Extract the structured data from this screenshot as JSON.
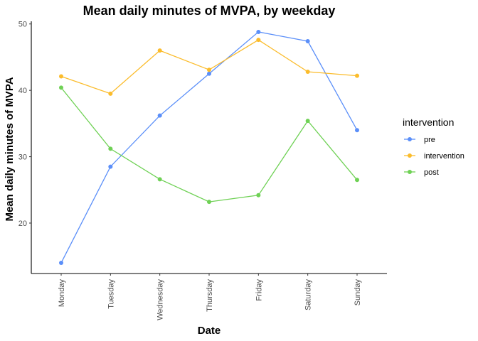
{
  "chart_data": {
    "type": "line",
    "title": "Mean daily minutes of MVPA, by weekday",
    "xlabel": "Date",
    "ylabel": "Mean daily minutes of MVPA",
    "categories": [
      "Monday",
      "Tuesday",
      "Wednesday",
      "Thursday",
      "Friday",
      "Saturday",
      "Sunday"
    ],
    "ylim": [
      12.4,
      50.4
    ],
    "yticks": [
      20,
      30,
      40,
      50
    ],
    "grid": false,
    "legend": {
      "title": "intervention",
      "position": "right"
    },
    "series": [
      {
        "name": "pre",
        "color": "#5b8ff9",
        "values": [
          14.0,
          28.5,
          36.2,
          42.5,
          48.8,
          47.4,
          34.0
        ]
      },
      {
        "name": "intervention",
        "color": "#fbbc2c",
        "values": [
          42.1,
          39.5,
          46.0,
          43.1,
          47.6,
          42.8,
          42.2
        ]
      },
      {
        "name": "post",
        "color": "#6fd155",
        "values": [
          40.4,
          31.2,
          26.6,
          23.2,
          24.2,
          35.4,
          26.5
        ]
      }
    ]
  }
}
